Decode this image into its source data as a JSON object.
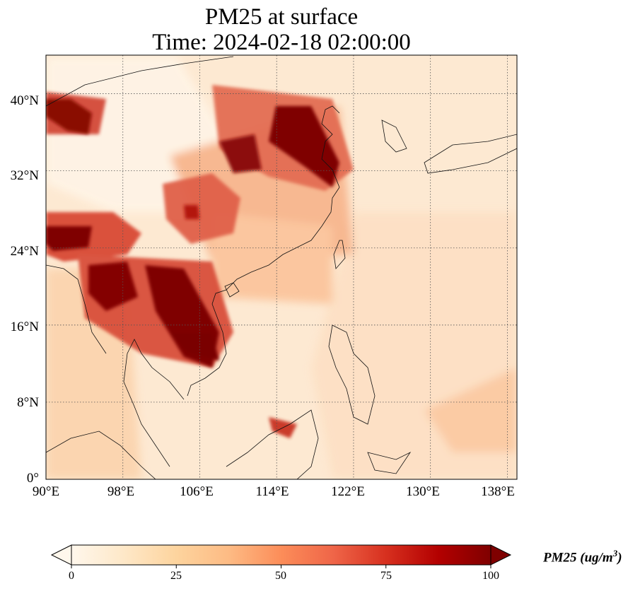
{
  "title": {
    "line1": "PM25 at surface",
    "line2": "Time: 2024-02-18 02:00:00"
  },
  "map": {
    "lon_range": [
      90,
      139
    ],
    "lat_range": [
      0,
      44
    ],
    "lat_ticks": [
      "0°",
      "8°N",
      "16°N",
      "24°N",
      "32°N",
      "40°N"
    ],
    "lon_ticks": [
      "90°E",
      "98°E",
      "106°E",
      "114°E",
      "122°E",
      "130°E",
      "138°E"
    ],
    "gridlines": "dotted",
    "coastlines": true,
    "field": "PM25 surface concentration",
    "high_concentration_regions": [
      "Sichuan Basin",
      "North China Plain",
      "Yangtze River Delta",
      "Northern Indochina",
      "Cambodia",
      "Tarim Basin edge"
    ]
  },
  "colorbar": {
    "ticks": [
      "0",
      "25",
      "50",
      "75",
      "100"
    ],
    "label_text": "PM25 (ug/m",
    "label_superscript": "3",
    "label_close": ")",
    "colormap": "OrRd",
    "extend": "both",
    "colors": [
      "#fff7ec",
      "#fee8c8",
      "#fdd49e",
      "#fdbb84",
      "#fc8d59",
      "#ef6548",
      "#d7301f",
      "#b30000",
      "#7f0000"
    ]
  }
}
